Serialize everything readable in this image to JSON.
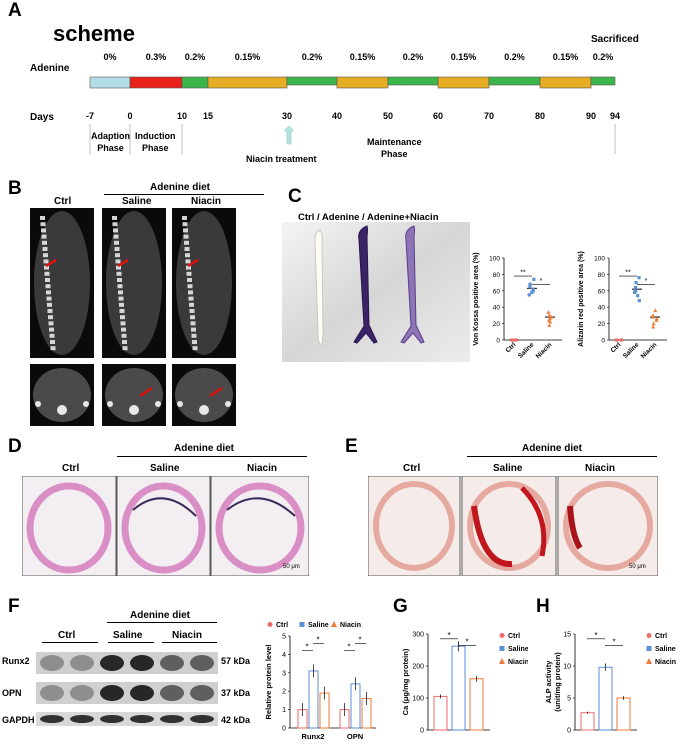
{
  "panels": {
    "A": {
      "letter": "A",
      "scheme_title": "scheme",
      "row_label": "Adenine",
      "days_label": "Days",
      "sacrificed": "Sacrificed",
      "pcts": [
        "0%",
        "0.3%",
        "0.2%",
        "0.15%",
        "0.2%",
        "0.15%",
        "0.2%",
        "0.15%",
        "0.2%",
        "0.15%",
        "0.2%"
      ],
      "day_ticks": [
        "-7",
        "0",
        "10",
        "15",
        "30",
        "40",
        "50",
        "60",
        "70",
        "80",
        "90",
        "94"
      ],
      "phase_adaption": [
        "Adaption",
        "Phase"
      ],
      "phase_induction": [
        "Induction",
        "Phase"
      ],
      "niacin_treatment": "Niacin treatment",
      "phase_maintenance": [
        "Maintenance",
        "Phase"
      ],
      "colors": {
        "adaption": "#b3dde6",
        "induction": "#e8211b",
        "p02": "#3cb54a",
        "p015": "#e5ad24"
      }
    },
    "B": {
      "letter": "B",
      "header": "Adenine diet",
      "labels": [
        "Ctrl",
        "Saline",
        "Niacin"
      ]
    },
    "C": {
      "letter": "C",
      "title": "Ctrl / Adenine / Adenine+Niacin",
      "chart_data": [
        {
          "type": "scatter",
          "ylabel": "Von Kossa positive area (%)",
          "ylim": [
            0,
            100
          ],
          "yticks": [
            "0",
            "20",
            "40",
            "60",
            "80",
            "100"
          ],
          "categories": [
            "Ctrl",
            "Saline",
            "Niacin"
          ],
          "means": [
            0,
            63,
            28
          ],
          "sig": [
            {
              "label": "**"
            },
            {
              "label": "*"
            }
          ]
        },
        {
          "type": "scatter",
          "ylabel": "Alizarin red positive area (%)",
          "ylim": [
            0,
            100
          ],
          "yticks": [
            "0",
            "20",
            "40",
            "60",
            "80",
            "100"
          ],
          "categories": [
            "Ctrl",
            "Saline",
            "Niacin"
          ],
          "means": [
            0,
            62,
            28
          ],
          "sig": [
            {
              "label": "**"
            },
            {
              "label": "*"
            }
          ]
        }
      ]
    },
    "D": {
      "letter": "D",
      "header": "Adenine diet",
      "labels": [
        "Ctrl",
        "Saline",
        "Niacin"
      ],
      "scale": "50 μm"
    },
    "E": {
      "letter": "E",
      "header": "Adenine diet",
      "labels": [
        "Ctrl",
        "Saline",
        "Niacin"
      ],
      "scale": "50 μm"
    },
    "F": {
      "letter": "F",
      "header": "Adenine diet",
      "groups": [
        "Ctrl",
        "Saline",
        "Niacin"
      ],
      "rows": [
        {
          "name": "Runx2",
          "kda": "57 kDa"
        },
        {
          "name": "OPN",
          "kda": "37 kDa"
        },
        {
          "name": "GAPDH",
          "kda": "42 kDa"
        }
      ],
      "legend": [
        "Ctrl",
        "Saline",
        "Niacin"
      ],
      "chart_data": {
        "type": "bar",
        "ylabel": "Relative protein level",
        "ylim": [
          0,
          5
        ],
        "yticks": [
          "0",
          "1",
          "2",
          "3",
          "4",
          "5"
        ],
        "categories": [
          "Runx2",
          "OPN"
        ],
        "series": [
          {
            "name": "Ctrl",
            "values": [
              1.0,
              1.0
            ]
          },
          {
            "name": "Saline",
            "values": [
              3.1,
              2.4
            ]
          },
          {
            "name": "Niacin",
            "values": [
              1.9,
              1.6
            ]
          }
        ],
        "sig": [
          "*",
          "*",
          "*",
          "*"
        ]
      }
    },
    "G": {
      "letter": "G",
      "legend": [
        "Ctrl",
        "Saline",
        "Niacin"
      ],
      "chart_data": {
        "type": "bar",
        "ylabel": "Ca (μg/mg protein)",
        "ylim": [
          0,
          300
        ],
        "yticks": [
          "0",
          "100",
          "200",
          "300"
        ],
        "categories": [
          "Ctrl",
          "Saline",
          "Niacin"
        ],
        "values": [
          105,
          262,
          160
        ],
        "sig": [
          "*",
          "*"
        ]
      }
    },
    "H": {
      "letter": "H",
      "legend": [
        "Ctrl",
        "Saline",
        "Niacin"
      ],
      "chart_data": {
        "type": "bar",
        "ylabel": "ALP activity (unit/mg protein)",
        "ylim": [
          0,
          15
        ],
        "yticks": [
          "0",
          "5",
          "10",
          "15"
        ],
        "categories": [
          "Ctrl",
          "Saline",
          "Niacin"
        ],
        "values": [
          2.7,
          9.8,
          5.0
        ],
        "sig": [
          "*",
          "*"
        ]
      }
    }
  },
  "colors": {
    "ctrl": "#ee6a6a",
    "saline": "#5b8fd6",
    "niacin": "#f07a3a"
  }
}
